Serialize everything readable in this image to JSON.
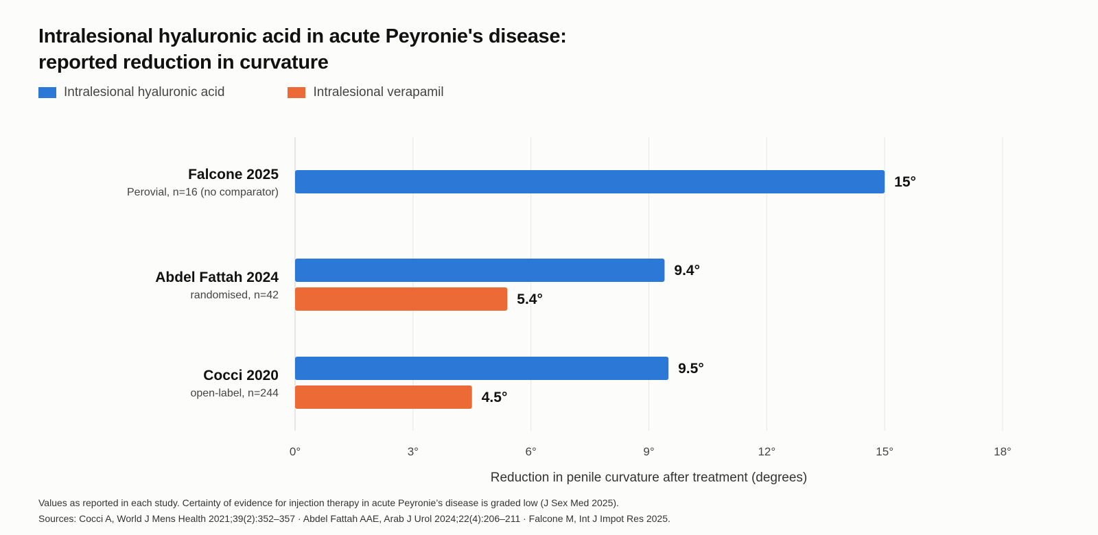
{
  "chart_data": {
    "type": "bar",
    "orientation": "horizontal",
    "title_lines": [
      "Intralesional hyaluronic acid in acute Peyronie's disease:",
      "reported reduction in curvature"
    ],
    "xlabel": "Reduction in penile curvature after treatment (degrees)",
    "xlim": [
      0,
      18
    ],
    "xticks": [
      0,
      3,
      6,
      9,
      12,
      15,
      18
    ],
    "tick_suffix": "°",
    "grid": true,
    "legend_placement": "top-left",
    "series": [
      {
        "name": "Intralesional hyaluronic acid",
        "color": "#2b78d6"
      },
      {
        "name": "Intralesional verapamil",
        "color": "#ec6a36"
      }
    ],
    "studies": [
      {
        "name": "Falcone 2025",
        "detail": "Perovial, n=16 (no comparator)",
        "values": [
          15,
          null
        ],
        "labels": [
          "15°",
          null
        ]
      },
      {
        "name": "Abdel Fattah 2024",
        "detail": "randomised, n=42",
        "values": [
          9.4,
          5.4
        ],
        "labels": [
          "9.4°",
          "5.4°"
        ]
      },
      {
        "name": "Cocci 2020",
        "detail": "open-label, n=244",
        "values": [
          9.5,
          4.5
        ],
        "labels": [
          "9.5°",
          "4.5°"
        ]
      }
    ]
  },
  "footnote": {
    "line1": "Values as reported in each study. Certainty of evidence for injection therapy in acute Peyronie’s disease is graded low (J Sex Med 2025).",
    "line2": "Sources: Cocci A, World J Mens Health 2021;39(2):352–357 · Abdel Fattah AAE, Arab J Urol 2024;22(4):206–211 · Falcone M, Int J Impot Res 2025."
  }
}
